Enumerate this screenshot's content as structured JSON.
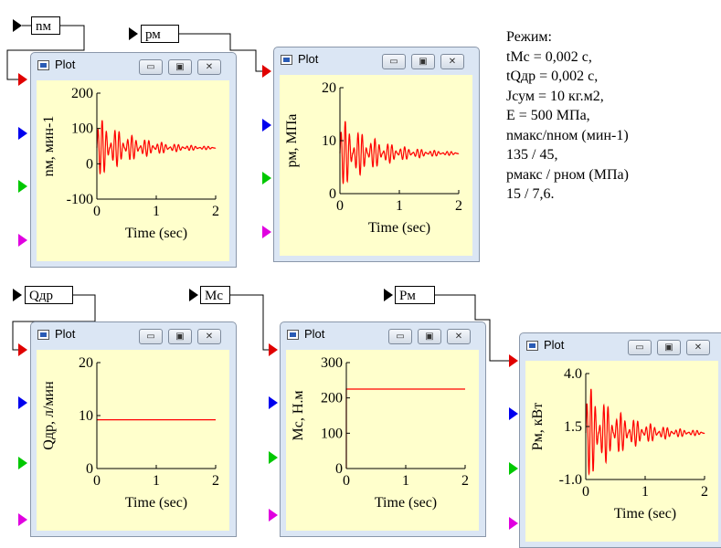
{
  "variables": {
    "nm": "nм",
    "rm": "рм",
    "qdr": "Qдр",
    "mc": "Мс",
    "pm": "Рм"
  },
  "plots": [
    {
      "title": "Plot",
      "chart_data": {
        "type": "line",
        "ylabel": "nм, мин-1",
        "xlabel": "Time (sec)",
        "xlim": [
          0,
          2
        ],
        "ylim": [
          -100,
          200
        ],
        "yticks": [
          "200",
          "100",
          "0",
          "-100"
        ],
        "xticks": [
          "0",
          "1",
          "2"
        ],
        "series": [
          {
            "values": "damped oscillation",
            "start": 0,
            "peak": 135,
            "trough": -45,
            "steady": 45
          }
        ]
      }
    },
    {
      "title": "Plot",
      "chart_data": {
        "type": "line",
        "ylabel": "рм, МПа",
        "xlabel": "Time (sec)",
        "xlim": [
          0,
          2
        ],
        "ylim": [
          0,
          20
        ],
        "yticks": [
          "20",
          "10",
          "0"
        ],
        "xticks": [
          "0",
          "1",
          "2"
        ],
        "series": [
          {
            "values": "damped oscillation",
            "peak": 15,
            "trough": 1,
            "steady": 7.6
          }
        ]
      }
    },
    {
      "title": "Plot",
      "chart_data": {
        "type": "line",
        "ylabel": "Qдр, л/мин",
        "xlabel": "Time (sec)",
        "xlim": [
          0,
          2
        ],
        "ylim": [
          0,
          20
        ],
        "yticks": [
          "20",
          "10",
          "0"
        ],
        "xticks": [
          "0",
          "1",
          "2"
        ],
        "series": [
          {
            "values": "constant",
            "level": 9.2
          }
        ]
      }
    },
    {
      "title": "Plot",
      "chart_data": {
        "type": "line",
        "ylabel": "Мс, Н.м",
        "xlabel": "Time (sec)",
        "xlim": [
          0,
          2
        ],
        "ylim": [
          0,
          300
        ],
        "yticks": [
          "300",
          "200",
          "100",
          "0"
        ],
        "xticks": [
          "0",
          "1",
          "2"
        ],
        "series": [
          {
            "values": "step to constant",
            "level": 225
          }
        ]
      }
    },
    {
      "title": "Plot",
      "chart_data": {
        "type": "line",
        "ylabel": "Рм, кВт",
        "xlabel": "Time (sec)",
        "xlim": [
          0,
          2
        ],
        "ylim": [
          -1.0,
          4.0
        ],
        "yticks": [
          "4.0",
          "1.5",
          "-1.0"
        ],
        "xticks": [
          "0",
          "1",
          "2"
        ],
        "series": [
          {
            "values": "damped oscillation",
            "peak": 3.9,
            "trough": -0.9,
            "steady": 1.2
          }
        ]
      }
    }
  ],
  "notes": [
    "Режим:",
    "tMc = 0,002 с,",
    "tQдр =  0,002 с,",
    "Jсум = 10 кг.м2,",
    "E = 500 МПа,",
    "nмакс/nном (мин-1)",
    "135 / 45,",
    "pмакс / pном (МПа)",
    "15  / 7,6."
  ],
  "colors": {
    "plot_bg": "#ffffcc",
    "trace": "#ff0000",
    "port_red": "#e00000",
    "port_blue": "#0000ee",
    "port_green": "#00c800",
    "port_magenta": "#e000e0"
  }
}
